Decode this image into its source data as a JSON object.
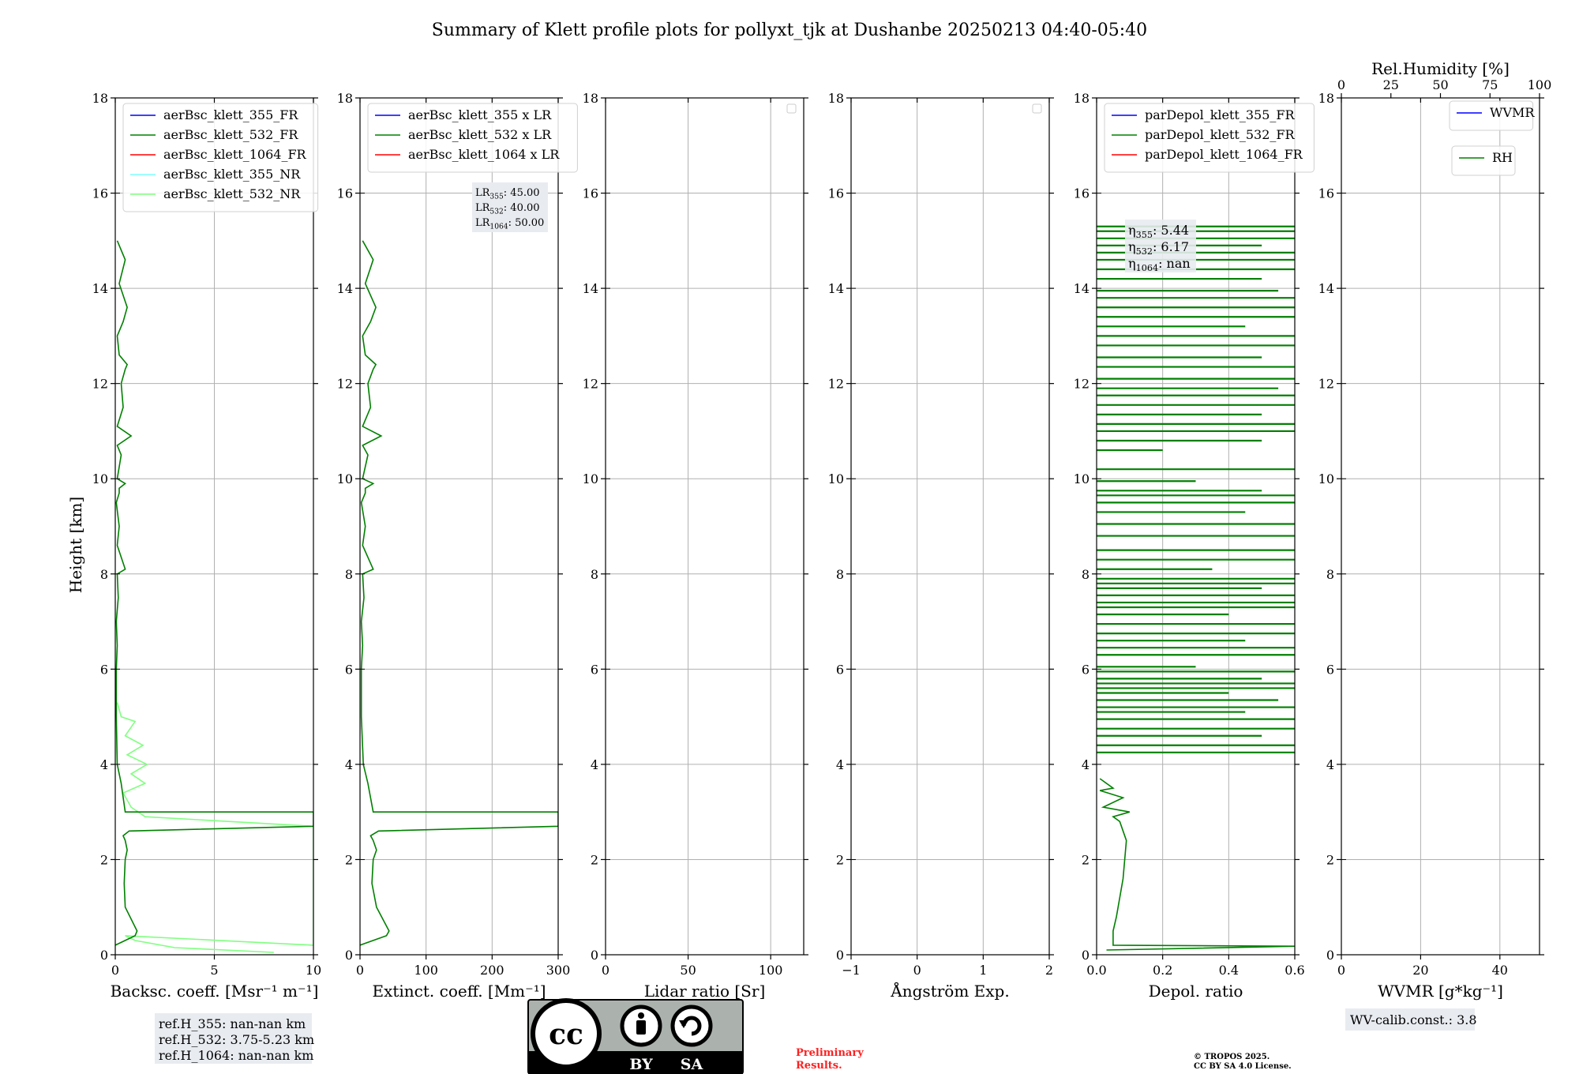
{
  "title": "Summary of Klett profile plots for pollyxt_tjk at Dushanbe 20250213 04:40-05:40",
  "ylabel": "Height [km]",
  "ylim": [
    0,
    18
  ],
  "yticks": [
    0,
    2,
    4,
    6,
    8,
    10,
    12,
    14,
    16,
    18
  ],
  "colors": {
    "blue": "#0000ff",
    "green": "#008000",
    "red": "#ff0000",
    "cyan": "#7fffff",
    "lightgreen": "#80ff80",
    "grid": "#b0b0b0",
    "annot_bg": "#e8ebf0",
    "prelim": "#ff2020"
  },
  "chart_data": [
    {
      "id": "bsc",
      "type": "line",
      "xlabel": "Backsc. coeff. [Msr⁻¹ m⁻¹]",
      "xlim": [
        0,
        10
      ],
      "xticks": [
        0,
        5,
        10
      ],
      "legend": [
        {
          "label": "aerBsc_klett_355_FR",
          "color": "blue"
        },
        {
          "label": "aerBsc_klett_532_FR",
          "color": "green"
        },
        {
          "label": "aerBsc_klett_1064_FR",
          "color": "red"
        },
        {
          "label": "aerBsc_klett_355_NR",
          "color": "cyan"
        },
        {
          "label": "aerBsc_klett_532_NR",
          "color": "lightgreen"
        }
      ],
      "series": [
        {
          "name": "aerBsc_klett_532_NR",
          "color": "lightgreen",
          "x": [
            8,
            3,
            1,
            0.5,
            10,
            10,
            1.5,
            0.8,
            0.4,
            1.5,
            0.8,
            1.6,
            0.6,
            1.4,
            0.5,
            1.0,
            0.3,
            0.1
          ],
          "y": [
            0.05,
            0.15,
            0.3,
            0.4,
            0.2,
            2.7,
            2.9,
            3.1,
            3.4,
            3.6,
            3.8,
            4.0,
            4.2,
            4.4,
            4.6,
            4.9,
            5.0,
            5.3
          ]
        },
        {
          "name": "aerBsc_klett_532_FR",
          "color": "green",
          "x": [
            0,
            0.5,
            1.0,
            1.1,
            0.5,
            0.45,
            0.5,
            0.6,
            0.5,
            0.4,
            0.7,
            10,
            10,
            0.5,
            0.3,
            0.1,
            0.05,
            0.05,
            0.1,
            0.05,
            0.15,
            0.1,
            0.5,
            0.1,
            0.2,
            0.05,
            0.2,
            0.2,
            0.5,
            0.1,
            0.3,
            0.1,
            0.8,
            0.1,
            0.4,
            0.3,
            0.5,
            0.6,
            0.2,
            0.1,
            0.4,
            0.6,
            0.2,
            0.5,
            0.1
          ],
          "y": [
            0.2,
            0.3,
            0.4,
            0.5,
            1.0,
            1.5,
            2.0,
            2.2,
            2.4,
            2.5,
            2.6,
            2.7,
            3.0,
            3.0,
            3.6,
            4.0,
            5.0,
            6.0,
            6.5,
            7.0,
            7.5,
            8.0,
            8.1,
            8.6,
            9.0,
            9.5,
            9.7,
            9.8,
            9.9,
            10.0,
            10.5,
            10.7,
            10.9,
            11.1,
            11.5,
            12.0,
            12.3,
            12.4,
            12.6,
            13.0,
            13.3,
            13.6,
            14.1,
            14.6,
            15.0
          ]
        }
      ],
      "annotation": [
        "ref.H_355: nan-nan km",
        "ref.H_532: 3.75-5.23 km",
        "ref.H_1064: nan-nan km"
      ]
    },
    {
      "id": "ext",
      "type": "line",
      "xlabel": "Extinct. coeff. [Mm⁻¹]",
      "xlim": [
        0,
        300
      ],
      "xticks": [
        0,
        100,
        200,
        300
      ],
      "legend": [
        {
          "label": "aerBsc_klett_355 x LR",
          "color": "blue"
        },
        {
          "label": "aerBsc_klett_532 x LR",
          "color": "green"
        },
        {
          "label": "aerBsc_klett_1064 x LR",
          "color": "red"
        }
      ],
      "series": [
        {
          "name": "aerBsc_klett_532 x LR",
          "color": "green",
          "x": [
            0,
            20,
            40,
            44,
            25,
            18,
            20,
            25,
            20,
            16,
            28,
            300,
            300,
            20,
            12,
            5,
            2,
            2,
            4,
            2,
            6,
            4,
            20,
            4,
            8,
            2,
            8,
            8,
            20,
            4,
            12,
            4,
            32,
            4,
            16,
            12,
            20,
            24,
            8,
            4,
            16,
            24,
            8,
            20,
            4
          ],
          "y": [
            0.2,
            0.3,
            0.4,
            0.5,
            1.0,
            1.5,
            2.0,
            2.2,
            2.4,
            2.5,
            2.6,
            2.7,
            3.0,
            3.0,
            3.6,
            4.0,
            5.0,
            6.0,
            6.5,
            7.0,
            7.5,
            8.0,
            8.1,
            8.6,
            9.0,
            9.5,
            9.7,
            9.8,
            9.9,
            10.0,
            10.5,
            10.7,
            10.9,
            11.1,
            11.5,
            12.0,
            12.3,
            12.4,
            12.6,
            13.0,
            13.3,
            13.6,
            14.1,
            14.6,
            15.0
          ]
        }
      ],
      "annotation": [
        "LR355: 45.00",
        "LR532: 40.00",
        "LR1064: 50.00"
      ]
    },
    {
      "id": "lr",
      "type": "line",
      "xlabel": "Lidar ratio [Sr]",
      "xlim": [
        0,
        120
      ],
      "xticks": [
        0,
        50,
        100
      ],
      "legend_empty": true,
      "series": []
    },
    {
      "id": "ae",
      "type": "line",
      "xlabel": "Ångström Exp.",
      "xlim": [
        -1,
        2
      ],
      "xticks": [
        -1,
        0,
        1,
        2
      ],
      "legend_empty": true,
      "series": []
    },
    {
      "id": "dep",
      "type": "line",
      "xlabel": "Depol. ratio",
      "xlim": [
        0,
        0.6
      ],
      "xticks": [
        0.0,
        0.2,
        0.4,
        0.6
      ],
      "tick_format": 1,
      "legend": [
        {
          "label": "parDepol_klett_355_FR",
          "color": "blue"
        },
        {
          "label": "parDepol_klett_532_FR",
          "color": "green"
        },
        {
          "label": "parDepol_klett_1064_FR",
          "color": "red"
        }
      ],
      "series": [
        {
          "name": "parDepol_klett_532_FR",
          "color": "green",
          "x": [
            0.03,
            0.6,
            0.05,
            0.05,
            0.06,
            0.07,
            0.08,
            0.085,
            0.09,
            0.08,
            0.07,
            0.05,
            0.1,
            0.02,
            0.08,
            0.01,
            0.05,
            0.01
          ],
          "y": [
            0.1,
            0.18,
            0.2,
            0.5,
            0.8,
            1.2,
            1.6,
            2.0,
            2.4,
            2.6,
            2.8,
            2.9,
            3.0,
            3.1,
            3.3,
            3.45,
            3.5,
            3.7
          ]
        },
        {
          "name": "parDepol_klett_532_FR_noise",
          "color": "green",
          "hlines": [
            [
              4.25,
              0.6
            ],
            [
              4.4,
              0.6
            ],
            [
              4.6,
              0.5
            ],
            [
              4.75,
              0.6
            ],
            [
              4.95,
              0.6
            ],
            [
              5.1,
              0.45
            ],
            [
              5.2,
              0.6
            ],
            [
              5.35,
              0.55
            ],
            [
              5.5,
              0.4
            ],
            [
              5.6,
              0.6
            ],
            [
              5.7,
              0.6
            ],
            [
              5.8,
              0.5
            ],
            [
              5.95,
              0.6
            ],
            [
              6.05,
              0.3
            ],
            [
              6.3,
              0.6
            ],
            [
              6.45,
              0.6
            ],
            [
              6.6,
              0.45
            ],
            [
              6.75,
              0.6
            ],
            [
              6.95,
              0.6
            ],
            [
              7.15,
              0.4
            ],
            [
              7.3,
              0.6
            ],
            [
              7.4,
              0.6
            ],
            [
              7.55,
              0.6
            ],
            [
              7.7,
              0.5
            ],
            [
              7.8,
              0.6
            ],
            [
              7.9,
              0.6
            ],
            [
              8.1,
              0.35
            ],
            [
              8.3,
              0.6
            ],
            [
              8.5,
              0.6
            ],
            [
              8.8,
              0.6
            ],
            [
              9.05,
              0.6
            ],
            [
              9.3,
              0.45
            ],
            [
              9.5,
              0.6
            ],
            [
              9.65,
              0.6
            ],
            [
              9.75,
              0.5
            ],
            [
              9.95,
              0.3
            ],
            [
              10.2,
              0.6
            ],
            [
              10.6,
              0.2
            ],
            [
              10.8,
              0.5
            ],
            [
              11.0,
              0.6
            ],
            [
              11.15,
              0.6
            ],
            [
              11.35,
              0.5
            ],
            [
              11.55,
              0.6
            ],
            [
              11.75,
              0.6
            ],
            [
              11.9,
              0.55
            ],
            [
              12.1,
              0.6
            ],
            [
              12.35,
              0.6
            ],
            [
              12.55,
              0.5
            ],
            [
              12.8,
              0.6
            ],
            [
              13.0,
              0.6
            ],
            [
              13.2,
              0.45
            ],
            [
              13.4,
              0.6
            ],
            [
              13.6,
              0.6
            ],
            [
              13.8,
              0.6
            ],
            [
              13.95,
              0.55
            ],
            [
              14.2,
              0.5
            ],
            [
              14.4,
              0.6
            ],
            [
              14.6,
              0.6
            ],
            [
              14.75,
              0.6
            ],
            [
              14.9,
              0.5
            ],
            [
              15.05,
              0.6
            ],
            [
              15.2,
              0.6
            ],
            [
              15.3,
              0.6
            ]
          ]
        }
      ],
      "annotation": [
        "η355: 5.44",
        "η532: 6.17",
        "η1064: nan"
      ]
    },
    {
      "id": "wv",
      "type": "line",
      "xlabel": "WVMR [g*kg⁻¹]",
      "xlim": [
        0,
        50
      ],
      "xticks": [
        0,
        20,
        40
      ],
      "top_axis": {
        "label": "Rel.Humidity [%]",
        "xlim": [
          0,
          100
        ],
        "xticks": [
          0,
          25,
          50,
          75,
          100
        ]
      },
      "legend": [
        {
          "label": "WVMR",
          "color": "blue"
        }
      ],
      "legend2": [
        {
          "label": "RH",
          "color": "green"
        }
      ],
      "series": [],
      "annotation": [
        "WV-calib.const.: 3.8"
      ]
    }
  ],
  "license": {
    "cc": "cc",
    "by": "BY",
    "sa": "SA"
  },
  "preliminary": [
    "Preliminary",
    "Results."
  ],
  "copyright": [
    "© TROPOS 2025.",
    "CC BY SA 4.0 License."
  ]
}
